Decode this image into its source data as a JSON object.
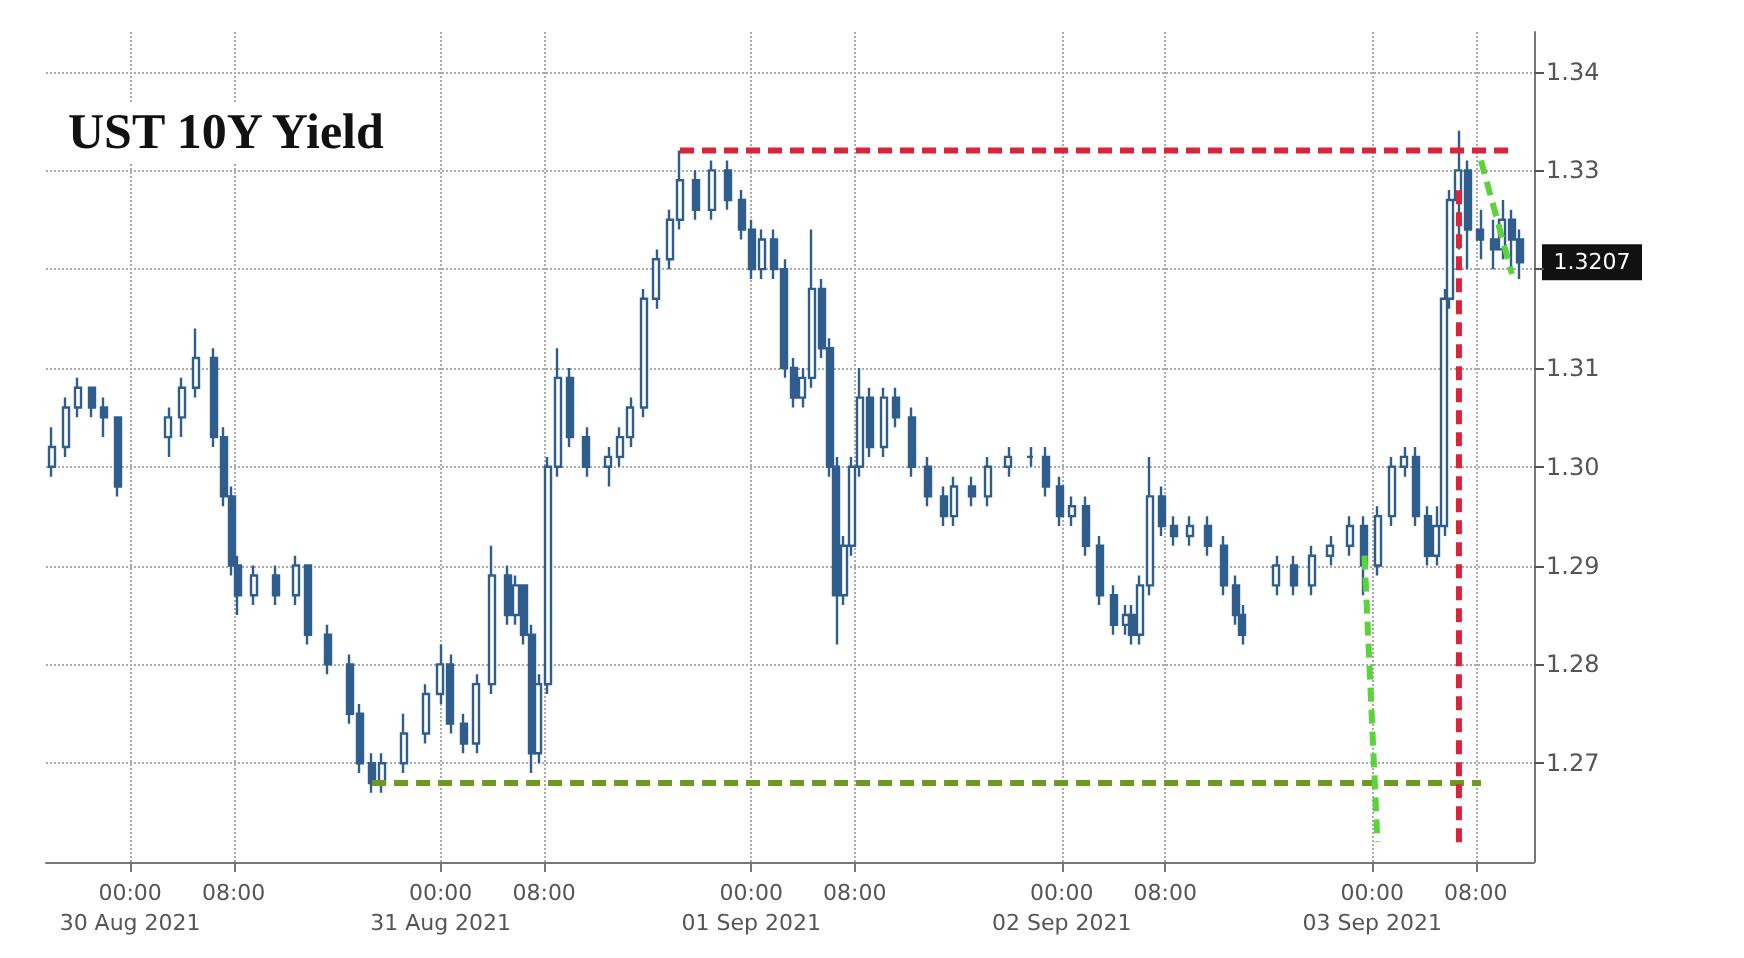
{
  "chart_data": {
    "type": "candlestick",
    "title": "UST 10Y Yield",
    "xlim": [
      "2021-08-29T17:30",
      "2021-09-03T12:30"
    ],
    "xticks": [
      {
        "value": "2021-08-30T00:00",
        "label": "00:00\n30 Aug 2021"
      },
      {
        "value": "2021-08-30T08:00",
        "label": "08:00"
      },
      {
        "value": "2021-08-31T00:00",
        "label": "00:00\n31 Aug 2021"
      },
      {
        "value": "2021-08-31T08:00",
        "label": "08:00"
      },
      {
        "value": "2021-09-01T00:00",
        "label": "00:00\n01 Sep 2021"
      },
      {
        "value": "2021-09-01T08:00",
        "label": "08:00"
      },
      {
        "value": "2021-09-02T00:00",
        "label": "00:00\n02 Sep 2021"
      },
      {
        "value": "2021-09-02T08:00",
        "label": "08:00"
      },
      {
        "value": "2021-09-03T00:00",
        "label": "00:00\n03 Sep 2021"
      },
      {
        "value": "2021-09-03T08:00",
        "label": "08:00"
      }
    ],
    "ylim": [
      1.26,
      1.344
    ],
    "yticks": [
      1.27,
      1.28,
      1.29,
      {
        "value": 1.3,
        "label": "1.30"
      },
      1.31,
      {
        "value": 1.32,
        "label": null
      },
      1.33,
      1.34
    ],
    "grid": true,
    "marker": "none",
    "annotations": [
      "1.3207"
    ],
    "series": [
      {
        "type": "candlestick",
        "color": "#2f5d8c",
        "x": [
          "2021-08-29T18:00",
          "2021-08-29T19:00",
          "2021-08-29T20:00",
          "2021-08-29T21:00",
          "2021-08-29T22:00",
          "2021-08-29T23:00",
          "2021-08-30T03:00",
          "2021-08-30T04:00",
          "2021-08-30T05:06",
          "2021-08-30T06:30",
          "2021-08-30T07:12",
          "2021-08-30T07:54",
          "2021-08-30T08:18",
          "2021-08-30T09:30",
          "2021-08-30T11:12",
          "2021-08-30T12:48",
          "2021-08-30T13:42",
          "2021-08-30T15:18",
          "2021-08-30T17:00",
          "2021-08-30T17:48",
          "2021-08-30T18:42",
          "2021-08-30T19:30",
          "2021-08-30T21:12",
          "2021-08-30T22:48",
          "2021-08-31T00:00",
          "2021-08-31T00:48",
          "2021-08-31T01:48",
          "2021-08-31T02:48",
          "2021-08-31T03:54",
          "2021-08-31T05:12",
          "2021-08-31T05:48",
          "2021-08-31T06:24",
          "2021-08-31T07:00",
          "2021-08-31T07:36",
          "2021-08-31T08:18",
          "2021-08-31T09:00",
          "2021-08-31T10:00",
          "2021-08-31T11:18",
          "2021-08-31T13:00",
          "2021-08-31T13:48",
          "2021-08-31T14:42",
          "2021-08-31T15:42",
          "2021-08-31T16:42",
          "2021-08-31T17:42",
          "2021-08-31T18:30",
          "2021-08-31T19:42",
          "2021-08-31T21:00",
          "2021-08-31T22:12",
          "2021-08-31T23:18",
          "2021-09-01T00:00",
          "2021-09-01T00:48",
          "2021-09-01T01:42",
          "2021-09-01T02:36",
          "2021-09-01T03:18",
          "2021-09-01T04:00",
          "2021-09-01T04:42",
          "2021-09-01T05:24",
          "2021-09-01T06:06",
          "2021-09-01T06:36",
          "2021-09-01T07:12",
          "2021-09-01T07:48",
          "2021-09-01T08:24",
          "2021-09-01T09:12",
          "2021-09-01T10:12",
          "2021-09-01T11:12",
          "2021-09-01T12:24",
          "2021-09-01T13:42",
          "2021-09-01T14:54",
          "2021-09-01T15:42",
          "2021-09-01T17:06",
          "2021-09-01T18:18",
          "2021-09-01T19:54",
          "2021-09-01T21:36",
          "2021-09-01T22:48",
          "2021-09-01T23:48",
          "2021-09-02T00:48",
          "2021-09-02T01:54",
          "2021-09-02T02:54",
          "2021-09-02T04:00",
          "2021-09-02T05:00",
          "2021-09-02T05:24",
          "2021-09-02T06:00",
          "2021-09-02T06:48",
          "2021-09-02T07:42",
          "2021-09-02T08:42",
          "2021-09-02T09:54",
          "2021-09-02T11:18",
          "2021-09-02T12:30",
          "2021-09-02T13:24",
          "2021-09-02T14:00",
          "2021-09-02T16:36",
          "2021-09-02T17:54",
          "2021-09-02T19:18",
          "2021-09-02T20:48",
          "2021-09-02T22:18",
          "2021-09-02T23:24",
          "2021-09-03T00:24",
          "2021-09-03T01:30",
          "2021-09-03T02:30",
          "2021-09-03T03:24",
          "2021-09-03T04:18",
          "2021-09-03T05:00",
          "2021-09-03T05:36",
          "2021-09-03T06:00",
          "2021-09-03T06:42",
          "2021-09-03T07:24",
          "2021-09-03T08:24",
          "2021-09-03T09:24",
          "2021-09-03T10:06",
          "2021-09-03T10:48",
          "2021-09-03T11:24"
        ],
        "ohlc": [
          [
            1.3,
            1.304,
            1.299,
            1.302
          ],
          [
            1.302,
            1.307,
            1.301,
            1.306
          ],
          [
            1.306,
            1.309,
            1.305,
            1.308
          ],
          [
            1.308,
            1.308,
            1.305,
            1.306
          ],
          [
            1.306,
            1.307,
            1.303,
            1.305
          ],
          [
            1.305,
            1.305,
            1.297,
            1.298
          ],
          [
            1.303,
            1.306,
            1.301,
            1.305
          ],
          [
            1.305,
            1.309,
            1.303,
            1.308
          ],
          [
            1.308,
            1.314,
            1.307,
            1.311
          ],
          [
            1.311,
            1.312,
            1.302,
            1.303
          ],
          [
            1.303,
            1.304,
            1.296,
            1.297
          ],
          [
            1.297,
            1.298,
            1.289,
            1.29
          ],
          [
            1.29,
            1.291,
            1.285,
            1.287
          ],
          [
            1.287,
            1.29,
            1.286,
            1.289
          ],
          [
            1.289,
            1.29,
            1.286,
            1.287
          ],
          [
            1.287,
            1.291,
            1.286,
            1.29
          ],
          [
            1.29,
            1.29,
            1.282,
            1.283
          ],
          [
            1.283,
            1.284,
            1.279,
            1.28
          ],
          [
            1.28,
            1.281,
            1.274,
            1.275
          ],
          [
            1.275,
            1.276,
            1.269,
            1.27
          ],
          [
            1.27,
            1.271,
            1.267,
            1.268
          ],
          [
            1.268,
            1.271,
            1.267,
            1.27
          ],
          [
            1.27,
            1.275,
            1.269,
            1.273
          ],
          [
            1.273,
            1.278,
            1.272,
            1.277
          ],
          [
            1.277,
            1.282,
            1.276,
            1.28
          ],
          [
            1.28,
            1.281,
            1.273,
            1.274
          ],
          [
            1.274,
            1.275,
            1.271,
            1.272
          ],
          [
            1.272,
            1.279,
            1.271,
            1.278
          ],
          [
            1.278,
            1.292,
            1.277,
            1.289
          ],
          [
            1.289,
            1.29,
            1.284,
            1.285
          ],
          [
            1.285,
            1.289,
            1.284,
            1.288
          ],
          [
            1.288,
            1.288,
            1.282,
            1.283
          ],
          [
            1.283,
            1.284,
            1.269,
            1.271
          ],
          [
            1.271,
            1.279,
            1.27,
            1.278
          ],
          [
            1.278,
            1.301,
            1.277,
            1.3
          ],
          [
            1.3,
            1.312,
            1.299,
            1.309
          ],
          [
            1.309,
            1.31,
            1.302,
            1.303
          ],
          [
            1.303,
            1.304,
            1.299,
            1.3
          ],
          [
            1.3,
            1.302,
            1.298,
            1.301
          ],
          [
            1.301,
            1.304,
            1.3,
            1.303
          ],
          [
            1.303,
            1.307,
            1.302,
            1.306
          ],
          [
            1.306,
            1.318,
            1.305,
            1.317
          ],
          [
            1.317,
            1.322,
            1.316,
            1.321
          ],
          [
            1.321,
            1.326,
            1.32,
            1.325
          ],
          [
            1.325,
            1.332,
            1.324,
            1.329
          ],
          [
            1.329,
            1.33,
            1.325,
            1.326
          ],
          [
            1.326,
            1.331,
            1.325,
            1.33
          ],
          [
            1.33,
            1.331,
            1.326,
            1.327
          ],
          [
            1.327,
            1.328,
            1.323,
            1.324
          ],
          [
            1.324,
            1.325,
            1.319,
            1.32
          ],
          [
            1.32,
            1.324,
            1.319,
            1.323
          ],
          [
            1.323,
            1.324,
            1.319,
            1.32
          ],
          [
            1.32,
            1.321,
            1.309,
            1.31
          ],
          [
            1.31,
            1.311,
            1.306,
            1.307
          ],
          [
            1.307,
            1.31,
            1.306,
            1.309
          ],
          [
            1.309,
            1.324,
            1.308,
            1.318
          ],
          [
            1.318,
            1.319,
            1.311,
            1.312
          ],
          [
            1.312,
            1.313,
            1.299,
            1.3
          ],
          [
            1.3,
            1.301,
            1.282,
            1.287
          ],
          [
            1.287,
            1.293,
            1.286,
            1.292
          ],
          [
            1.292,
            1.301,
            1.291,
            1.3
          ],
          [
            1.3,
            1.31,
            1.299,
            1.307
          ],
          [
            1.307,
            1.308,
            1.301,
            1.302
          ],
          [
            1.302,
            1.308,
            1.301,
            1.307
          ],
          [
            1.307,
            1.308,
            1.304,
            1.305
          ],
          [
            1.305,
            1.306,
            1.299,
            1.3
          ],
          [
            1.3,
            1.301,
            1.296,
            1.297
          ],
          [
            1.297,
            1.298,
            1.294,
            1.295
          ],
          [
            1.295,
            1.299,
            1.294,
            1.298
          ],
          [
            1.298,
            1.299,
            1.296,
            1.297
          ],
          [
            1.297,
            1.301,
            1.296,
            1.3
          ],
          [
            1.3,
            1.302,
            1.299,
            1.301
          ],
          [
            1.301,
            1.302,
            1.3,
            1.301
          ],
          [
            1.301,
            1.302,
            1.297,
            1.298
          ],
          [
            1.298,
            1.299,
            1.294,
            1.295
          ],
          [
            1.295,
            1.297,
            1.294,
            1.296
          ],
          [
            1.296,
            1.297,
            1.291,
            1.292
          ],
          [
            1.292,
            1.293,
            1.286,
            1.287
          ],
          [
            1.287,
            1.288,
            1.283,
            1.284
          ],
          [
            1.284,
            1.286,
            1.283,
            1.285
          ],
          [
            1.285,
            1.286,
            1.282,
            1.283
          ],
          [
            1.283,
            1.289,
            1.282,
            1.288
          ],
          [
            1.288,
            1.301,
            1.287,
            1.297
          ],
          [
            1.297,
            1.298,
            1.293,
            1.294
          ],
          [
            1.294,
            1.295,
            1.292,
            1.293
          ],
          [
            1.293,
            1.295,
            1.292,
            1.294
          ],
          [
            1.294,
            1.295,
            1.291,
            1.292
          ],
          [
            1.292,
            1.293,
            1.287,
            1.288
          ],
          [
            1.288,
            1.289,
            1.284,
            1.285
          ],
          [
            1.285,
            1.286,
            1.282,
            1.283
          ],
          [
            1.288,
            1.291,
            1.287,
            1.29
          ],
          [
            1.29,
            1.291,
            1.287,
            1.288
          ],
          [
            1.288,
            1.292,
            1.287,
            1.291
          ],
          [
            1.291,
            1.293,
            1.29,
            1.292
          ],
          [
            1.292,
            1.295,
            1.291,
            1.294
          ],
          [
            1.294,
            1.295,
            1.287,
            1.29
          ],
          [
            1.29,
            1.296,
            1.289,
            1.295
          ],
          [
            1.295,
            1.301,
            1.294,
            1.3
          ],
          [
            1.3,
            1.302,
            1.299,
            1.301
          ],
          [
            1.301,
            1.302,
            1.294,
            1.295
          ],
          [
            1.295,
            1.296,
            1.29,
            1.291
          ],
          [
            1.291,
            1.296,
            1.29,
            1.294
          ],
          [
            1.294,
            1.318,
            1.293,
            1.317
          ],
          [
            1.317,
            1.328,
            1.316,
            1.327
          ],
          [
            1.327,
            1.334,
            1.322,
            1.33
          ],
          [
            1.33,
            1.331,
            1.32,
            1.324
          ],
          [
            1.324,
            1.326,
            1.321,
            1.323
          ],
          [
            1.323,
            1.325,
            1.32,
            1.322
          ],
          [
            1.322,
            1.327,
            1.321,
            1.325
          ],
          [
            1.325,
            1.326,
            1.32,
            1.323
          ],
          [
            1.323,
            1.324,
            1.319,
            1.3207
          ]
        ]
      },
      {
        "type": "line",
        "color": "#d9243a",
        "line_style": "dashed",
        "x": [
          "2021-08-31T18:30",
          "2021-09-03T10:48"
        ],
        "values": [
          1.332,
          1.332
        ]
      },
      {
        "type": "line",
        "color": "#6b9a1e",
        "line_style": "dashed",
        "x": [
          "2021-08-30T18:42",
          "2021-09-03T08:24"
        ],
        "values": [
          1.268,
          1.268
        ]
      },
      {
        "type": "line",
        "color": "#d9243a",
        "line_style": "dashed",
        "x": [
          "2021-09-03T06:42",
          "2021-09-03T06:42"
        ],
        "values": [
          1.262,
          1.328
        ]
      },
      {
        "type": "line",
        "color": "#5ad43a",
        "line_style": "dashed",
        "x": [
          "2021-09-02T23:24",
          "2021-09-03T00:24"
        ],
        "values": [
          1.291,
          1.262
        ]
      },
      {
        "type": "line",
        "color": "#5ad43a",
        "line_style": "dashed",
        "x": [
          "2021-09-03T08:24",
          "2021-09-03T10:48"
        ],
        "values": [
          1.331,
          1.3195
        ]
      }
    ]
  }
}
